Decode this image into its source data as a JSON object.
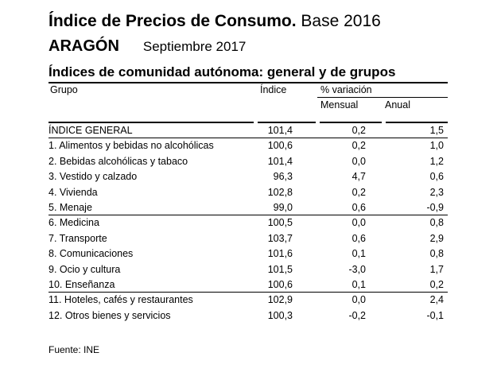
{
  "header": {
    "title_bold": "Índice de Precios de Consumo.",
    "title_rest": " Base 2016",
    "region": "ARAGÓN",
    "period": "Septiembre 2017",
    "subtitle": "Índices de comunidad autónoma: general y de grupos"
  },
  "table": {
    "col_group": "Grupo",
    "col_index": "Índice",
    "col_variation": "% variación",
    "col_monthly": "Mensual",
    "col_annual": "Anual",
    "rows": [
      {
        "name": "ÍNDICE GENERAL",
        "index": "101,4",
        "monthly": "0,2",
        "annual": "1,5"
      },
      {
        "name": "1. Alimentos y bebidas no alcohólicas",
        "index": "100,6",
        "monthly": "0,2",
        "annual": "1,0"
      },
      {
        "name": "2. Bebidas alcohólicas y tabaco",
        "index": "101,4",
        "monthly": "0,0",
        "annual": "1,2"
      },
      {
        "name": "3. Vestido y calzado",
        "index": "96,3",
        "monthly": "4,7",
        "annual": "0,6"
      },
      {
        "name": "4. Vivienda",
        "index": "102,8",
        "monthly": "0,2",
        "annual": "2,3"
      },
      {
        "name": "5. Menaje",
        "index": "99,0",
        "monthly": "0,6",
        "annual": "-0,9"
      },
      {
        "name": "6. Medicina",
        "index": "100,5",
        "monthly": "0,0",
        "annual": "0,8"
      },
      {
        "name": "7. Transporte",
        "index": "103,7",
        "monthly": "0,6",
        "annual": "2,9"
      },
      {
        "name": "8. Comunicaciones",
        "index": "101,6",
        "monthly": "0,1",
        "annual": "0,8"
      },
      {
        "name": "9. Ocio y cultura",
        "index": "101,5",
        "monthly": "-3,0",
        "annual": "1,7"
      },
      {
        "name": "10. Enseñanza",
        "index": "100,6",
        "monthly": "0,1",
        "annual": "0,2"
      },
      {
        "name": "11. Hoteles, cafés y restaurantes",
        "index": "102,9",
        "monthly": "0,0",
        "annual": "2,4"
      },
      {
        "name": "12. Otros bienes y servicios",
        "index": "100,3",
        "monthly": "-0,2",
        "annual": "-0,1"
      }
    ]
  },
  "footer": {
    "source": "Fuente: INE"
  }
}
